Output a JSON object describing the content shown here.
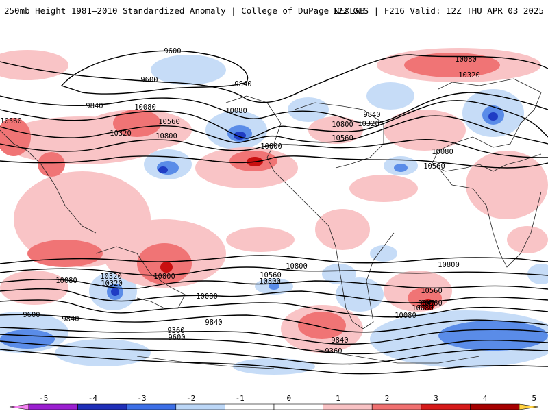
{
  "header": {
    "title": "250mb Height 1981–2010 Standardized Anomaly | College of DuPage NEXLAB",
    "run_info": "12Z GFS | F216 Valid: 12Z THU APR 03 2025"
  },
  "colorbar": {
    "ticks": [
      "-5",
      "-4",
      "-3",
      "-2",
      "-1",
      "0",
      "1",
      "2",
      "3",
      "4",
      "5"
    ],
    "colors": [
      "#f582f0",
      "#9b1fd0",
      "#1f2fb8",
      "#3d6fe6",
      "#bcd7f7",
      "#ffffff",
      "#ffffff",
      "#f8c2c4",
      "#f07070",
      "#d61a1a",
      "#a60000",
      "#f5a020",
      "#ffd040"
    ]
  },
  "contours": {
    "labels": [
      "9600",
      "9600",
      "9840",
      "9840",
      "9840",
      "10080",
      "10080",
      "10320",
      "10560",
      "10560",
      "10800",
      "10800",
      "10080",
      "10320",
      "10560",
      "10800",
      "10320",
      "10080",
      "10560",
      "10800",
      "10800",
      "10080",
      "10320",
      "10560",
      "10800",
      "10800",
      "10320",
      "10080",
      "10560",
      "10080",
      "10560",
      "9840",
      "9840",
      "9600",
      "9360",
      "9600",
      "9360",
      "9840",
      "9840",
      "10080"
    ]
  }
}
